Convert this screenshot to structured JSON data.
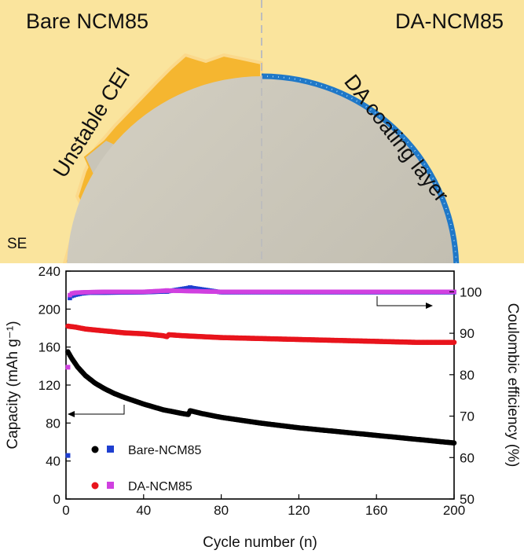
{
  "scheme": {
    "left_title": "Bare NCM85",
    "right_title": "DA-NCM85",
    "cei_label": "Unstable CEI",
    "coating_label": "DA coating layer",
    "se_label": "SE",
    "colors": {
      "background": "#fae49d",
      "particle": "#c9c5b8",
      "cei": "#f5b630",
      "coating": "#1f78c8"
    }
  },
  "chart_data": {
    "type": "scatter",
    "xlabel": "Cycle number (n)",
    "ylabel_left": "Capacity (mAh g⁻¹)",
    "ylabel_right": "Coulombic efficiency (%)",
    "xlim": [
      0,
      200
    ],
    "ylim_left": [
      0,
      240
    ],
    "ylim_right": [
      50,
      105
    ],
    "x_ticks": [
      0,
      40,
      80,
      120,
      160,
      200
    ],
    "y_left_ticks": [
      0,
      40,
      80,
      120,
      160,
      200,
      240
    ],
    "y_right_ticks": [
      50,
      60,
      70,
      80,
      90,
      100
    ],
    "legend": [
      {
        "label": "Bare-NCM85",
        "capacity_color": "#000000",
        "ce_color": "#1f3fd0"
      },
      {
        "label": "DA-NCM85",
        "capacity_color": "#e8141c",
        "ce_color": "#d040e0"
      }
    ],
    "series": [
      {
        "name": "Bare-NCM85",
        "axis": "capacity",
        "points": [
          [
            1,
            155
          ],
          [
            3,
            148
          ],
          [
            6,
            139
          ],
          [
            10,
            130
          ],
          [
            15,
            122
          ],
          [
            20,
            116
          ],
          [
            25,
            111
          ],
          [
            30,
            107
          ],
          [
            40,
            100
          ],
          [
            50,
            94
          ],
          [
            55,
            92
          ],
          [
            60,
            90
          ],
          [
            63,
            89
          ],
          [
            64,
            93
          ],
          [
            70,
            90
          ],
          [
            80,
            86
          ],
          [
            100,
            80
          ],
          [
            120,
            75
          ],
          [
            140,
            71
          ],
          [
            160,
            67
          ],
          [
            180,
            63
          ],
          [
            200,
            59
          ]
        ]
      },
      {
        "name": "DA-NCM85",
        "axis": "capacity",
        "points": [
          [
            1,
            182
          ],
          [
            5,
            181
          ],
          [
            10,
            179
          ],
          [
            20,
            177
          ],
          [
            30,
            175
          ],
          [
            40,
            174
          ],
          [
            50,
            172
          ],
          [
            52,
            171
          ],
          [
            53,
            173
          ],
          [
            60,
            172
          ],
          [
            80,
            170
          ],
          [
            100,
            169
          ],
          [
            120,
            168
          ],
          [
            140,
            167
          ],
          [
            160,
            166
          ],
          [
            180,
            165
          ],
          [
            200,
            165
          ]
        ]
      },
      {
        "name": "Bare-NCM85",
        "axis": "efficiency",
        "points": [
          [
            1,
            60.5
          ],
          [
            2,
            98.5
          ],
          [
            3,
            99
          ],
          [
            5,
            99.3
          ],
          [
            8,
            99.6
          ],
          [
            12,
            99.8
          ],
          [
            20,
            99.8
          ],
          [
            40,
            99.9
          ],
          [
            52,
            100.1
          ],
          [
            64,
            101
          ],
          [
            80,
            99.9
          ],
          [
            120,
            99.9
          ],
          [
            160,
            99.9
          ],
          [
            200,
            99.9
          ]
        ]
      },
      {
        "name": "DA-NCM85",
        "axis": "efficiency",
        "points": [
          [
            1,
            81.8
          ],
          [
            2,
            99.2
          ],
          [
            3,
            99.6
          ],
          [
            5,
            99.8
          ],
          [
            10,
            99.9
          ],
          [
            20,
            100
          ],
          [
            40,
            100
          ],
          [
            52,
            100.3
          ],
          [
            80,
            100
          ],
          [
            120,
            100
          ],
          [
            160,
            100
          ],
          [
            200,
            100
          ]
        ]
      }
    ]
  }
}
